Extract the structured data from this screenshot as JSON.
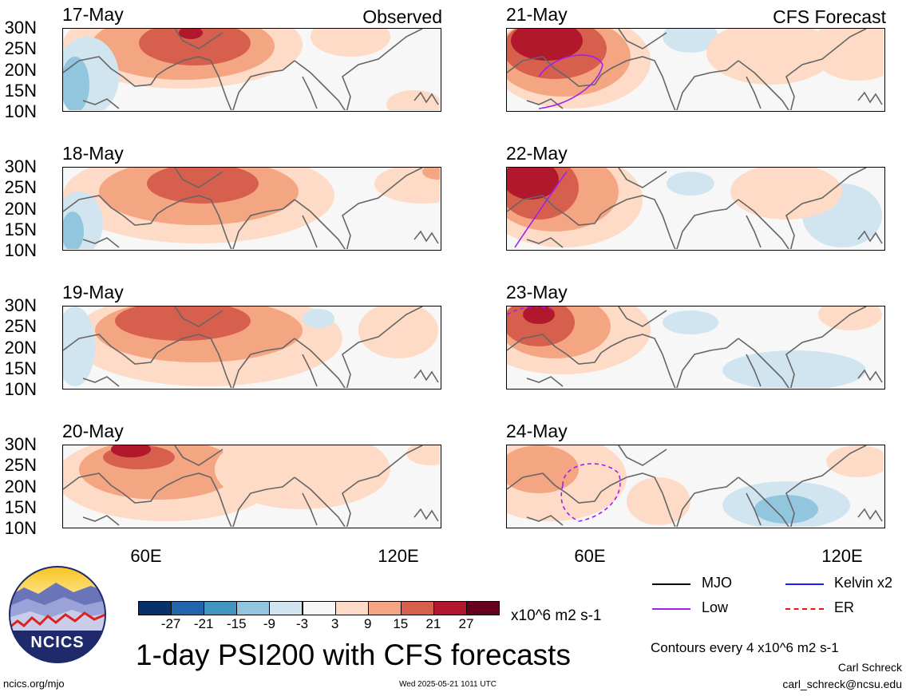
{
  "panels": [
    {
      "date": "17-May",
      "header": "Observed"
    },
    {
      "date": "18-May",
      "header": ""
    },
    {
      "date": "19-May",
      "header": ""
    },
    {
      "date": "20-May",
      "header": ""
    },
    {
      "date": "21-May",
      "header": "CFS Forecast"
    },
    {
      "date": "22-May",
      "header": ""
    },
    {
      "date": "23-May",
      "header": ""
    },
    {
      "date": "24-May",
      "header": ""
    }
  ],
  "lat_labels": [
    "30N",
    "25N",
    "20N",
    "15N",
    "10N"
  ],
  "lon_labels": [
    "60E",
    "120E"
  ],
  "colorbar": {
    "colors": [
      "#08306b",
      "#2166ac",
      "#4393c3",
      "#92c5de",
      "#d1e5f0",
      "#f7f7f7",
      "#fddbc7",
      "#f4a582",
      "#d6604d",
      "#b2182b",
      "#67001f"
    ],
    "ticks": [
      "-27",
      "-21",
      "-15",
      "-9",
      "-3",
      "3",
      "9",
      "15",
      "21",
      "27"
    ],
    "units": "x10^6 m2 s-1"
  },
  "legend": {
    "items": [
      {
        "label": "MJO",
        "color": "#000000",
        "style": "solid"
      },
      {
        "label": "Kelvin x2",
        "color": "#1a1aff",
        "style": "solid"
      },
      {
        "label": "Low",
        "color": "#a020f0",
        "style": "solid"
      },
      {
        "label": "ER",
        "color": "#ee1111",
        "style": "dashed"
      }
    ],
    "contours": "Contours every 4 x10^6 m2 s-1"
  },
  "title": "1-day PSI200 with CFS forecasts",
  "logo": {
    "text": "NCICS"
  },
  "footer": {
    "site": "ncics.org/mjo",
    "timestamp": "Wed 2025-05-21 1011 UTC",
    "author": "Carl Schreck",
    "email": "carl_schreck@ncsu.edu"
  },
  "colors": {
    "positive": "#d6604d",
    "negative": "#4393c3",
    "coast": "#666666"
  }
}
